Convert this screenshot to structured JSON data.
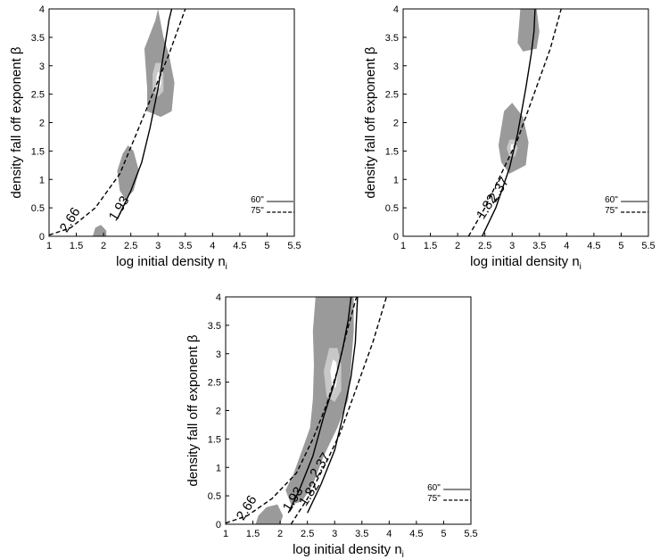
{
  "chart_data": [
    {
      "type": "contour",
      "xlabel": "log initial density n",
      "xlabel_sub": "i",
      "ylabel": "density fall off exponent β",
      "xlim": [
        1,
        5.5
      ],
      "ylim": [
        0,
        4
      ],
      "xticks": [
        "1",
        "1.5",
        "2",
        "2.5",
        "3",
        "3.5",
        "4",
        "4.5",
        "5",
        "5.5"
      ],
      "yticks": [
        "0",
        "0.5",
        "1",
        "1.5",
        "2",
        "2.5",
        "3",
        "3.5",
        "4"
      ],
      "legend": [
        {
          "label": "60\"",
          "style": "solid",
          "color": "#888888"
        },
        {
          "label": "75\"",
          "style": "dashed",
          "color": "#000000"
        }
      ],
      "lines": [
        {
          "style": "solid",
          "label": "1.93",
          "label_at": [
            2.35,
            0.45
          ],
          "points": [
            [
              2.25,
              0.3
            ],
            [
              2.5,
              0.8
            ],
            [
              2.7,
              1.3
            ],
            [
              2.85,
              1.9
            ],
            [
              3.0,
              2.6
            ],
            [
              3.1,
              3.2
            ],
            [
              3.2,
              3.8
            ],
            [
              3.25,
              4.0
            ]
          ]
        },
        {
          "style": "dashed",
          "label": "2.66",
          "label_at": [
            1.45,
            0.25
          ],
          "points": [
            [
              1.0,
              0.02
            ],
            [
              1.4,
              0.15
            ],
            [
              1.85,
              0.5
            ],
            [
              2.3,
              1.1
            ],
            [
              2.6,
              1.8
            ],
            [
              2.9,
              2.5
            ],
            [
              3.2,
              3.2
            ],
            [
              3.5,
              4.0
            ]
          ]
        }
      ],
      "regions": [
        {
          "shade": "mid",
          "points": [
            [
              2.75,
              3.3
            ],
            [
              2.8,
              2.6
            ],
            [
              2.8,
              2.2
            ],
            [
              3.05,
              2.1
            ],
            [
              3.25,
              2.2
            ],
            [
              3.3,
              2.7
            ],
            [
              3.2,
              3.2
            ],
            [
              3.1,
              3.5
            ],
            [
              3.0,
              4.0
            ],
            [
              2.95,
              3.8
            ]
          ]
        },
        {
          "shade": "light",
          "points": [
            [
              2.9,
              2.85
            ],
            [
              2.9,
              2.55
            ],
            [
              3.0,
              2.45
            ],
            [
              3.1,
              2.55
            ],
            [
              3.1,
              2.85
            ],
            [
              3.05,
              3.05
            ],
            [
              2.95,
              3.05
            ]
          ]
        },
        {
          "shade": "white",
          "points": [
            [
              2.97,
              2.8
            ],
            [
              2.97,
              2.65
            ],
            [
              3.03,
              2.6
            ],
            [
              3.06,
              2.7
            ],
            [
              3.05,
              2.85
            ],
            [
              3.0,
              2.9
            ]
          ]
        },
        {
          "shade": "mid",
          "points": [
            [
              2.25,
              1.15
            ],
            [
              2.3,
              0.8
            ],
            [
              2.4,
              0.65
            ],
            [
              2.55,
              0.8
            ],
            [
              2.65,
              1.15
            ],
            [
              2.55,
              1.5
            ],
            [
              2.45,
              1.6
            ],
            [
              2.35,
              1.45
            ]
          ]
        },
        {
          "shade": "mid",
          "points": [
            [
              1.8,
              0.0
            ],
            [
              1.85,
              0.15
            ],
            [
              1.95,
              0.2
            ],
            [
              2.05,
              0.1
            ],
            [
              2.05,
              0.0
            ]
          ]
        }
      ]
    },
    {
      "type": "contour",
      "xlabel": "log initial density n",
      "xlabel_sub": "i",
      "ylabel": "density fall off exponent β",
      "xlim": [
        1,
        5.5
      ],
      "ylim": [
        0,
        4
      ],
      "xticks": [
        "1",
        "1.5",
        "2",
        "2.5",
        "3",
        "3.5",
        "4",
        "4.5",
        "5",
        "5.5"
      ],
      "yticks": [
        "0",
        "0.5",
        "1",
        "1.5",
        "2",
        "2.5",
        "3",
        "3.5",
        "4"
      ],
      "legend": [
        {
          "label": "60\"",
          "style": "solid",
          "color": "#888888"
        },
        {
          "label": "75\"",
          "style": "dashed",
          "color": "#000000"
        }
      ],
      "lines": [
        {
          "style": "solid",
          "label": "2.37",
          "label_at": [
            2.82,
            0.78
          ],
          "points": [
            [
              2.45,
              0.0
            ],
            [
              2.7,
              0.5
            ],
            [
              2.95,
              1.2
            ],
            [
              3.1,
              1.8
            ],
            [
              3.25,
              2.6
            ],
            [
              3.35,
              3.2
            ],
            [
              3.4,
              3.6
            ],
            [
              3.42,
              4.0
            ]
          ]
        },
        {
          "style": "dashed",
          "label": "1.82",
          "label_at": [
            2.6,
            0.48
          ],
          "points": [
            [
              2.2,
              0.0
            ],
            [
              2.5,
              0.5
            ],
            [
              2.8,
              1.1
            ],
            [
              3.1,
              1.7
            ],
            [
              3.4,
              2.5
            ],
            [
              3.7,
              3.3
            ],
            [
              3.9,
              4.0
            ]
          ]
        }
      ],
      "regions": [
        {
          "shade": "mid",
          "points": [
            [
              2.75,
              1.6
            ],
            [
              2.8,
              1.3
            ],
            [
              2.95,
              1.1
            ],
            [
              3.25,
              1.25
            ],
            [
              3.3,
              1.65
            ],
            [
              3.2,
              2.1
            ],
            [
              3.0,
              2.35
            ],
            [
              2.85,
              2.2
            ]
          ]
        },
        {
          "shade": "light",
          "points": [
            [
              2.9,
              1.55
            ],
            [
              2.95,
              1.4
            ],
            [
              3.05,
              1.4
            ],
            [
              3.1,
              1.55
            ],
            [
              3.05,
              1.7
            ],
            [
              2.95,
              1.7
            ]
          ]
        },
        {
          "shade": "white",
          "points": [
            [
              2.97,
              1.55
            ],
            [
              3.0,
              1.48
            ],
            [
              3.05,
              1.52
            ],
            [
              3.03,
              1.62
            ],
            [
              2.98,
              1.62
            ]
          ]
        },
        {
          "shade": "mid",
          "points": [
            [
              3.1,
              3.4
            ],
            [
              3.2,
              3.25
            ],
            [
              3.45,
              3.3
            ],
            [
              3.5,
              3.6
            ],
            [
              3.45,
              4.0
            ],
            [
              3.15,
              4.0
            ]
          ]
        }
      ]
    },
    {
      "type": "contour",
      "xlabel": "log initial density n",
      "xlabel_sub": "i",
      "ylabel": "density fall off exponent β",
      "xlim": [
        1,
        5.5
      ],
      "ylim": [
        0,
        4
      ],
      "xticks": [
        "1",
        "1.5",
        "2",
        "2.5",
        "3",
        "3.5",
        "4",
        "4.5",
        "5",
        "5.5"
      ],
      "yticks": [
        "0",
        "0.5",
        "1",
        "1.5",
        "2",
        "2.5",
        "3",
        "3.5",
        "4"
      ],
      "legend": [
        {
          "label": "60\"",
          "style": "solid",
          "color": "#888888"
        },
        {
          "label": "75\"",
          "style": "dashed",
          "color": "#000000"
        }
      ],
      "lines": [
        {
          "style": "solid",
          "label": "1.93",
          "label_at": [
            2.3,
            0.4
          ],
          "points": [
            [
              2.15,
              0.2
            ],
            [
              2.35,
              0.6
            ],
            [
              2.6,
              1.2
            ],
            [
              2.8,
              1.9
            ],
            [
              3.0,
              2.5
            ],
            [
              3.15,
              3.1
            ],
            [
              3.25,
              3.6
            ],
            [
              3.3,
              4.0
            ]
          ]
        },
        {
          "style": "solid",
          "label": "2.37",
          "label_at": [
            2.8,
            1.0
          ],
          "points": [
            [
              2.5,
              0.2
            ],
            [
              2.75,
              0.7
            ],
            [
              3.0,
              1.3
            ],
            [
              3.15,
              1.9
            ],
            [
              3.3,
              2.6
            ],
            [
              3.38,
              3.2
            ],
            [
              3.42,
              4.0
            ]
          ]
        },
        {
          "style": "dashed",
          "label": "2.66",
          "label_at": [
            1.45,
            0.25
          ],
          "points": [
            [
              1.0,
              0.02
            ],
            [
              1.4,
              0.15
            ],
            [
              1.85,
              0.45
            ],
            [
              2.3,
              0.9
            ],
            [
              2.6,
              1.5
            ],
            [
              2.85,
              2.1
            ],
            [
              3.05,
              2.7
            ],
            [
              3.2,
              3.3
            ],
            [
              3.4,
              4.0
            ]
          ]
        },
        {
          "style": "dashed",
          "label": "1.82",
          "label_at": [
            2.6,
            0.5
          ],
          "points": [
            [
              2.2,
              0.0
            ],
            [
              2.5,
              0.45
            ],
            [
              2.8,
              1.0
            ],
            [
              3.1,
              1.6
            ],
            [
              3.4,
              2.4
            ],
            [
              3.7,
              3.2
            ],
            [
              3.95,
              4.0
            ]
          ]
        }
      ],
      "regions": [
        {
          "shade": "mid",
          "points": [
            [
              2.1,
              0.6
            ],
            [
              2.25,
              0.9
            ],
            [
              2.4,
              1.3
            ],
            [
              2.55,
              1.7
            ],
            [
              2.6,
              2.2
            ],
            [
              2.62,
              2.8
            ],
            [
              2.6,
              3.4
            ],
            [
              2.65,
              4.0
            ],
            [
              3.35,
              4.0
            ],
            [
              3.35,
              3.4
            ],
            [
              3.3,
              2.8
            ],
            [
              3.25,
              2.2
            ],
            [
              3.05,
              1.7
            ],
            [
              2.8,
              1.2
            ],
            [
              2.6,
              0.7
            ],
            [
              2.4,
              0.4
            ],
            [
              2.2,
              0.35
            ]
          ]
        },
        {
          "shade": "light",
          "points": [
            [
              2.8,
              2.7
            ],
            [
              2.85,
              2.25
            ],
            [
              3.0,
              2.15
            ],
            [
              3.12,
              2.35
            ],
            [
              3.12,
              2.8
            ],
            [
              3.05,
              3.1
            ],
            [
              2.9,
              3.1
            ]
          ]
        },
        {
          "shade": "white",
          "points": [
            [
              2.92,
              2.7
            ],
            [
              2.95,
              2.45
            ],
            [
              3.02,
              2.4
            ],
            [
              3.05,
              2.6
            ],
            [
              3.03,
              2.85
            ],
            [
              2.97,
              2.9
            ]
          ]
        },
        {
          "shade": "mid",
          "points": [
            [
              1.55,
              0.0
            ],
            [
              1.6,
              0.15
            ],
            [
              1.75,
              0.3
            ],
            [
              1.95,
              0.35
            ],
            [
              2.05,
              0.15
            ],
            [
              2.0,
              0.0
            ]
          ]
        }
      ]
    }
  ]
}
